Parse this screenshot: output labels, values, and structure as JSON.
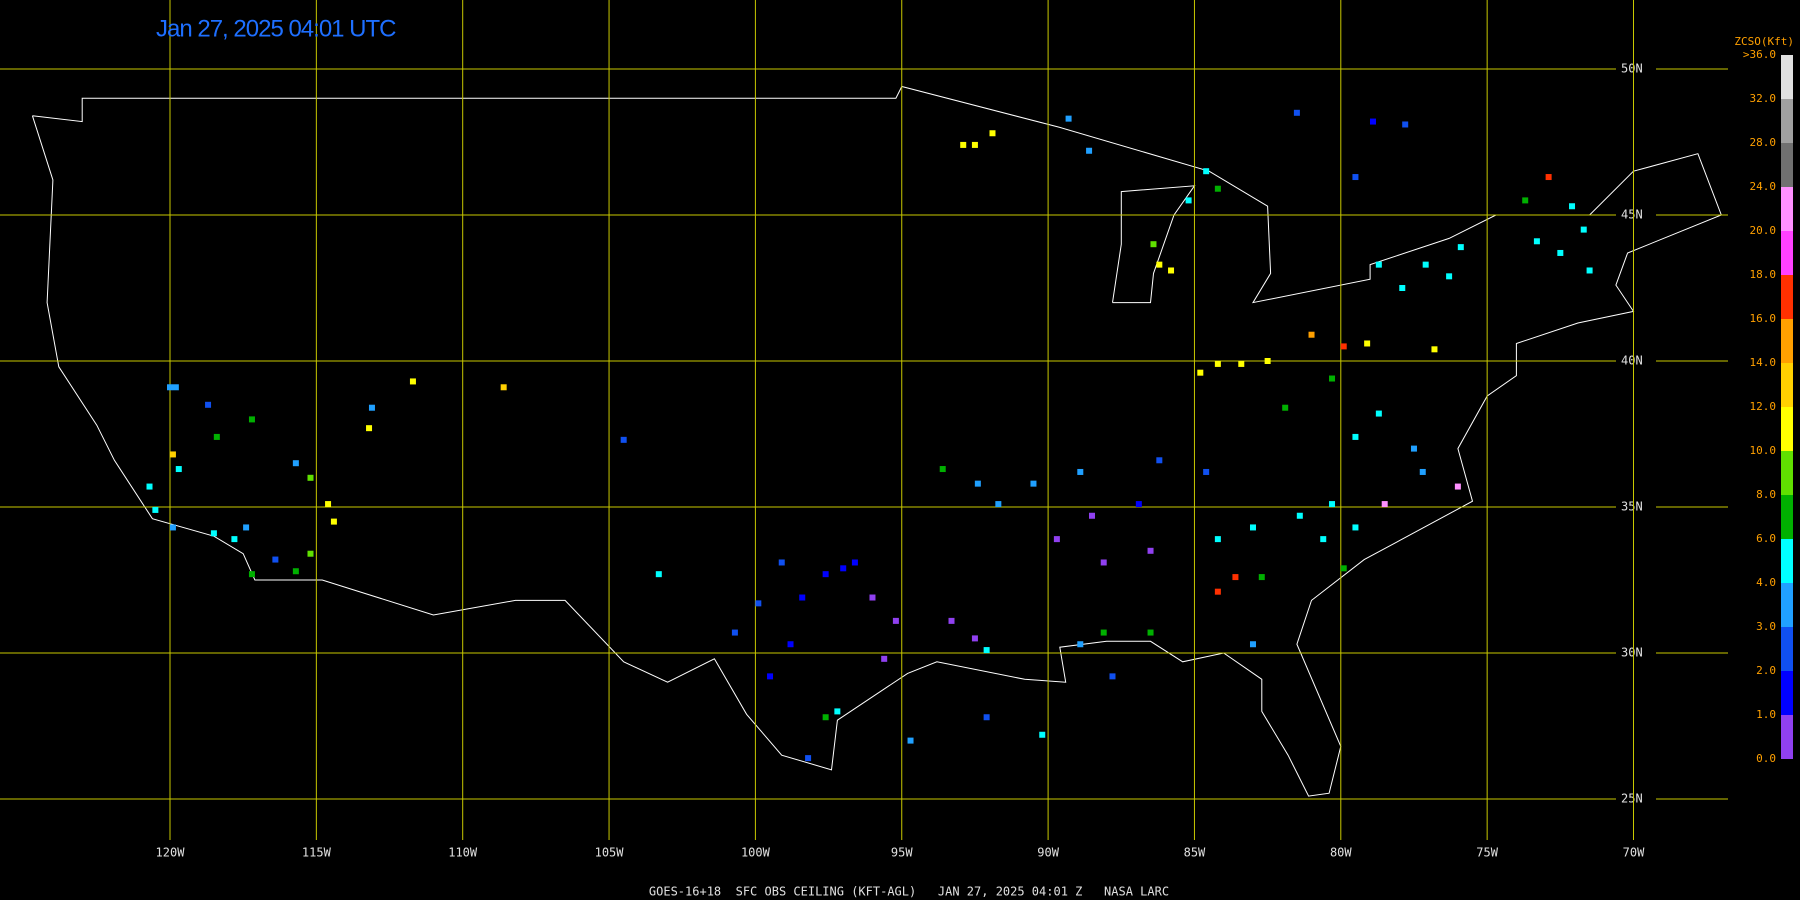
{
  "title": "Jan 27, 2025 04:01 UTC",
  "footer": "GOES-16+18  SFC OBS CEILING (KFT-AGL)   JAN 27, 2025 04:01 Z   NASA LARC",
  "grid": {
    "lat": [
      {
        "value": 50,
        "label": "50N"
      },
      {
        "value": 45,
        "label": "45N"
      },
      {
        "value": 40,
        "label": "40N"
      },
      {
        "value": 35,
        "label": "35N"
      },
      {
        "value": 30,
        "label": "30N"
      },
      {
        "value": 25,
        "label": "25N"
      }
    ],
    "lon": [
      {
        "value": -120,
        "label": "120W"
      },
      {
        "value": -115,
        "label": "115W"
      },
      {
        "value": -110,
        "label": "110W"
      },
      {
        "value": -105,
        "label": "105W"
      },
      {
        "value": -100,
        "label": "100W"
      },
      {
        "value": -95,
        "label": "95W"
      },
      {
        "value": -90,
        "label": "90W"
      },
      {
        "value": -85,
        "label": "85W"
      },
      {
        "value": -80,
        "label": "80W"
      },
      {
        "value": -75,
        "label": "75W"
      },
      {
        "value": -70,
        "label": "70W"
      }
    ]
  },
  "colorbar": {
    "title": "ZCSO(Kft)",
    "ticks": [
      {
        "value": 0,
        "label": "0.0"
      },
      {
        "value": 1,
        "label": "1.0"
      },
      {
        "value": 2,
        "label": "2.0"
      },
      {
        "value": 3,
        "label": "3.0"
      },
      {
        "value": 4,
        "label": "4.0"
      },
      {
        "value": 6,
        "label": "6.0"
      },
      {
        "value": 8,
        "label": "8.0"
      },
      {
        "value": 10,
        "label": "10.0"
      },
      {
        "value": 12,
        "label": "12.0"
      },
      {
        "value": 14,
        "label": "14.0"
      },
      {
        "value": 16,
        "label": "16.0"
      },
      {
        "value": 18,
        "label": "18.0"
      },
      {
        "value": 20,
        "label": "20.0"
      },
      {
        "value": 24,
        "label": "24.0"
      },
      {
        "value": 28,
        "label": "28.0"
      },
      {
        "value": 32,
        "label": "32.0"
      },
      {
        "value": 36,
        "label": ">36.0"
      }
    ],
    "colors": [
      "#9040f0",
      "#0000ff",
      "#1050f0",
      "#20a0ff",
      "#00ffff",
      "#00b000",
      "#60e000",
      "#ffff00",
      "#ffd000",
      "#ffa000",
      "#ff3000",
      "#ff40ff",
      "#ff90ff",
      "#707070",
      "#a0a0a0",
      "#e0e0e0"
    ]
  },
  "stations": [
    {
      "lon": -97.0,
      "lat": 32.9,
      "value": 1.5
    },
    {
      "lon": -97.6,
      "lat": 32.7,
      "value": 1.5
    },
    {
      "lon": -96.6,
      "lat": 33.1,
      "value": 1.5
    },
    {
      "lon": -98.4,
      "lat": 31.9,
      "value": 1.5
    },
    {
      "lon": -98.8,
      "lat": 30.3,
      "value": 1.5
    },
    {
      "lon": -99.5,
      "lat": 29.2,
      "value": 1.5
    },
    {
      "lon": -96.0,
      "lat": 31.9,
      "value": 0.5
    },
    {
      "lon": -95.2,
      "lat": 31.1,
      "value": 0.5
    },
    {
      "lon": -95.6,
      "lat": 29.8,
      "value": 0.5
    },
    {
      "lon": -97.2,
      "lat": 28.0,
      "value": 5
    },
    {
      "lon": -97.6,
      "lat": 27.8,
      "value": 7
    },
    {
      "lon": -98.2,
      "lat": 26.4,
      "value": 2.5
    },
    {
      "lon": -99.9,
      "lat": 31.7,
      "value": 2.5
    },
    {
      "lon": -99.1,
      "lat": 33.1,
      "value": 2.5
    },
    {
      "lon": -100.7,
      "lat": 30.7,
      "value": 2.5
    },
    {
      "lon": -93.3,
      "lat": 31.1,
      "value": 0.5
    },
    {
      "lon": -92.5,
      "lat": 30.5,
      "value": 0.5
    },
    {
      "lon": -92.1,
      "lat": 30.1,
      "value": 5
    },
    {
      "lon": -89.7,
      "lat": 33.9,
      "value": 0.5
    },
    {
      "lon": -88.5,
      "lat": 34.7,
      "value": 0.5
    },
    {
      "lon": -86.9,
      "lat": 35.1,
      "value": 1.5
    },
    {
      "lon": -86.5,
      "lat": 33.5,
      "value": 0.5
    },
    {
      "lon": -88.1,
      "lat": 33.1,
      "value": 0.5
    },
    {
      "lon": -91.7,
      "lat": 35.1,
      "value": 3.5
    },
    {
      "lon": -90.5,
      "lat": 35.8,
      "value": 3.5
    },
    {
      "lon": -88.9,
      "lat": 36.2,
      "value": 3.5
    },
    {
      "lon": -93.6,
      "lat": 36.3,
      "value": 7
    },
    {
      "lon": -92.4,
      "lat": 35.8,
      "value": 3.5
    },
    {
      "lon": -84.2,
      "lat": 33.9,
      "value": 5
    },
    {
      "lon": -83.0,
      "lat": 34.3,
      "value": 5
    },
    {
      "lon": -80.6,
      "lat": 33.9,
      "value": 5
    },
    {
      "lon": -81.4,
      "lat": 34.7,
      "value": 5
    },
    {
      "lon": -84.2,
      "lat": 32.1,
      "value": 17
    },
    {
      "lon": -83.6,
      "lat": 32.6,
      "value": 17
    },
    {
      "lon": -82.7,
      "lat": 32.6,
      "value": 7
    },
    {
      "lon": -79.9,
      "lat": 32.9,
      "value": 7
    },
    {
      "lon": -88.9,
      "lat": 30.3,
      "value": 3.5
    },
    {
      "lon": -88.1,
      "lat": 30.7,
      "value": 7
    },
    {
      "lon": -86.5,
      "lat": 30.7,
      "value": 7
    },
    {
      "lon": -83.0,
      "lat": 30.3,
      "value": 3.5
    },
    {
      "lon": -84.6,
      "lat": 36.2,
      "value": 2.5
    },
    {
      "lon": -86.2,
      "lat": 36.6,
      "value": 2.5
    },
    {
      "lon": -84.2,
      "lat": 39.9,
      "value": 11
    },
    {
      "lon": -83.4,
      "lat": 39.9,
      "value": 11
    },
    {
      "lon": -82.5,
      "lat": 40.0,
      "value": 11
    },
    {
      "lon": -84.8,
      "lat": 39.6,
      "value": 11
    },
    {
      "lon": -81.9,
      "lat": 38.4,
      "value": 7
    },
    {
      "lon": -80.3,
      "lat": 39.4,
      "value": 7
    },
    {
      "lon": -79.5,
      "lat": 37.4,
      "value": 5
    },
    {
      "lon": -78.7,
      "lat": 38.2,
      "value": 5
    },
    {
      "lon": -77.5,
      "lat": 37.0,
      "value": 3.5
    },
    {
      "lon": -77.2,
      "lat": 36.2,
      "value": 3.5
    },
    {
      "lon": -80.3,
      "lat": 35.1,
      "value": 5
    },
    {
      "lon": -79.5,
      "lat": 34.3,
      "value": 5
    },
    {
      "lon": -76.0,
      "lat": 35.7,
      "value": 22
    },
    {
      "lon": -78.5,
      "lat": 35.1,
      "value": 22
    },
    {
      "lon": -78.7,
      "lat": 43.3,
      "value": 5
    },
    {
      "lon": -77.1,
      "lat": 43.3,
      "value": 5
    },
    {
      "lon": -75.9,
      "lat": 43.9,
      "value": 5
    },
    {
      "lon": -77.9,
      "lat": 42.5,
      "value": 5
    },
    {
      "lon": -76.3,
      "lat": 42.9,
      "value": 5
    },
    {
      "lon": -79.1,
      "lat": 40.6,
      "value": 11
    },
    {
      "lon": -76.8,
      "lat": 40.4,
      "value": 11
    },
    {
      "lon": -81.0,
      "lat": 40.9,
      "value": 15
    },
    {
      "lon": -79.9,
      "lat": 40.5,
      "value": 17
    },
    {
      "lon": -73.3,
      "lat": 44.1,
      "value": 5
    },
    {
      "lon": -72.5,
      "lat": 43.7,
      "value": 5
    },
    {
      "lon": -71.7,
      "lat": 44.5,
      "value": 5
    },
    {
      "lon": -71.5,
      "lat": 43.1,
      "value": 5
    },
    {
      "lon": -73.7,
      "lat": 45.5,
      "value": 7
    },
    {
      "lon": -72.9,
      "lat": 46.3,
      "value": 17
    },
    {
      "lon": -72.1,
      "lat": 45.3,
      "value": 5
    },
    {
      "lon": -81.5,
      "lat": 48.5,
      "value": 2.5
    },
    {
      "lon": -78.9,
      "lat": 48.2,
      "value": 1.5
    },
    {
      "lon": -77.8,
      "lat": 48.1,
      "value": 2.5
    },
    {
      "lon": -79.5,
      "lat": 46.3,
      "value": 2.5
    },
    {
      "lon": -86.4,
      "lat": 44.0,
      "value": 9
    },
    {
      "lon": -86.2,
      "lat": 43.3,
      "value": 11
    },
    {
      "lon": -85.8,
      "lat": 43.1,
      "value": 11
    },
    {
      "lon": -84.6,
      "lat": 46.5,
      "value": 5
    },
    {
      "lon": -84.2,
      "lat": 45.9,
      "value": 7
    },
    {
      "lon": -85.2,
      "lat": 45.5,
      "value": 5
    },
    {
      "lon": -88.6,
      "lat": 47.2,
      "value": 3.5
    },
    {
      "lon": -89.3,
      "lat": 48.3,
      "value": 3.5
    },
    {
      "lon": -92.9,
      "lat": 47.4,
      "value": 11
    },
    {
      "lon": -92.5,
      "lat": 47.4,
      "value": 11
    },
    {
      "lon": -91.9,
      "lat": 47.8,
      "value": 11
    },
    {
      "lon": -108.6,
      "lat": 39.1,
      "value": 13
    },
    {
      "lon": -111.7,
      "lat": 39.3,
      "value": 11
    },
    {
      "lon": -113.2,
      "lat": 37.7,
      "value": 11
    },
    {
      "lon": -113.1,
      "lat": 38.4,
      "value": 3.5
    },
    {
      "lon": -104.5,
      "lat": 37.3,
      "value": 2.5
    },
    {
      "lon": -103.3,
      "lat": 32.7,
      "value": 5
    },
    {
      "lon": -120.0,
      "lat": 39.1,
      "value": 3.5
    },
    {
      "lon": -119.8,
      "lat": 39.1,
      "value": 3.5
    },
    {
      "lon": -118.7,
      "lat": 38.5,
      "value": 2.5
    },
    {
      "lon": -118.4,
      "lat": 37.4,
      "value": 7
    },
    {
      "lon": -117.2,
      "lat": 38.0,
      "value": 7
    },
    {
      "lon": -119.7,
      "lat": 36.3,
      "value": 5
    },
    {
      "lon": -119.9,
      "lat": 36.8,
      "value": 13
    },
    {
      "lon": -120.7,
      "lat": 35.7,
      "value": 5
    },
    {
      "lon": -120.5,
      "lat": 34.9,
      "value": 5
    },
    {
      "lon": -119.9,
      "lat": 34.3,
      "value": 3.5
    },
    {
      "lon": -118.5,
      "lat": 34.1,
      "value": 5
    },
    {
      "lon": -117.8,
      "lat": 33.9,
      "value": 5
    },
    {
      "lon": -117.4,
      "lat": 34.3,
      "value": 3.5
    },
    {
      "lon": -117.2,
      "lat": 32.7,
      "value": 7
    },
    {
      "lon": -116.4,
      "lat": 33.2,
      "value": 2.5
    },
    {
      "lon": -115.7,
      "lat": 36.5,
      "value": 3.5
    },
    {
      "lon": -115.2,
      "lat": 36.0,
      "value": 9
    },
    {
      "lon": -114.6,
      "lat": 35.1,
      "value": 11
    },
    {
      "lon": -114.4,
      "lat": 34.5,
      "value": 11
    },
    {
      "lon": -115.2,
      "lat": 33.4,
      "value": 9
    },
    {
      "lon": -115.7,
      "lat": 32.8,
      "value": 7
    },
    {
      "lon": -92.1,
      "lat": 27.8,
      "value": 2.5
    },
    {
      "lon": -90.2,
      "lat": 27.2,
      "value": 5
    },
    {
      "lon": -87.8,
      "lat": 29.2,
      "value": 2.5
    },
    {
      "lon": -94.7,
      "lat": 27.0,
      "value": 3.5
    }
  ]
}
